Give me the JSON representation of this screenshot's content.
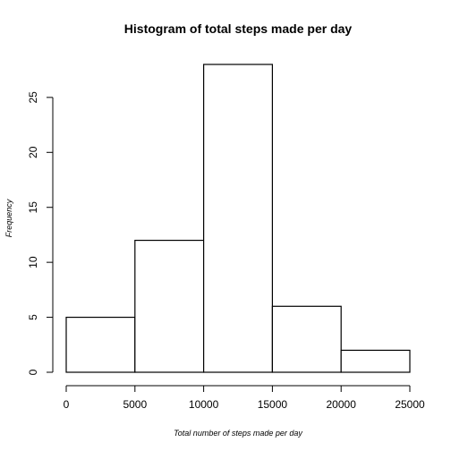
{
  "chart_data": {
    "type": "histogram",
    "title": "Histogram of total steps made per day",
    "xlabel": "Total number of steps made per day",
    "ylabel": "Frequency",
    "bins": [
      {
        "from": 0,
        "to": 5000,
        "count": 5
      },
      {
        "from": 5000,
        "to": 10000,
        "count": 12
      },
      {
        "from": 10000,
        "to": 15000,
        "count": 28
      },
      {
        "from": 15000,
        "to": 20000,
        "count": 6
      },
      {
        "from": 20000,
        "to": 25000,
        "count": 2
      }
    ],
    "x_ticks": [
      0,
      5000,
      10000,
      15000,
      20000,
      25000
    ],
    "y_ticks": [
      0,
      5,
      10,
      15,
      20,
      25
    ],
    "xlim": [
      0,
      25000
    ],
    "ylim": [
      0,
      28
    ],
    "grid": false
  }
}
